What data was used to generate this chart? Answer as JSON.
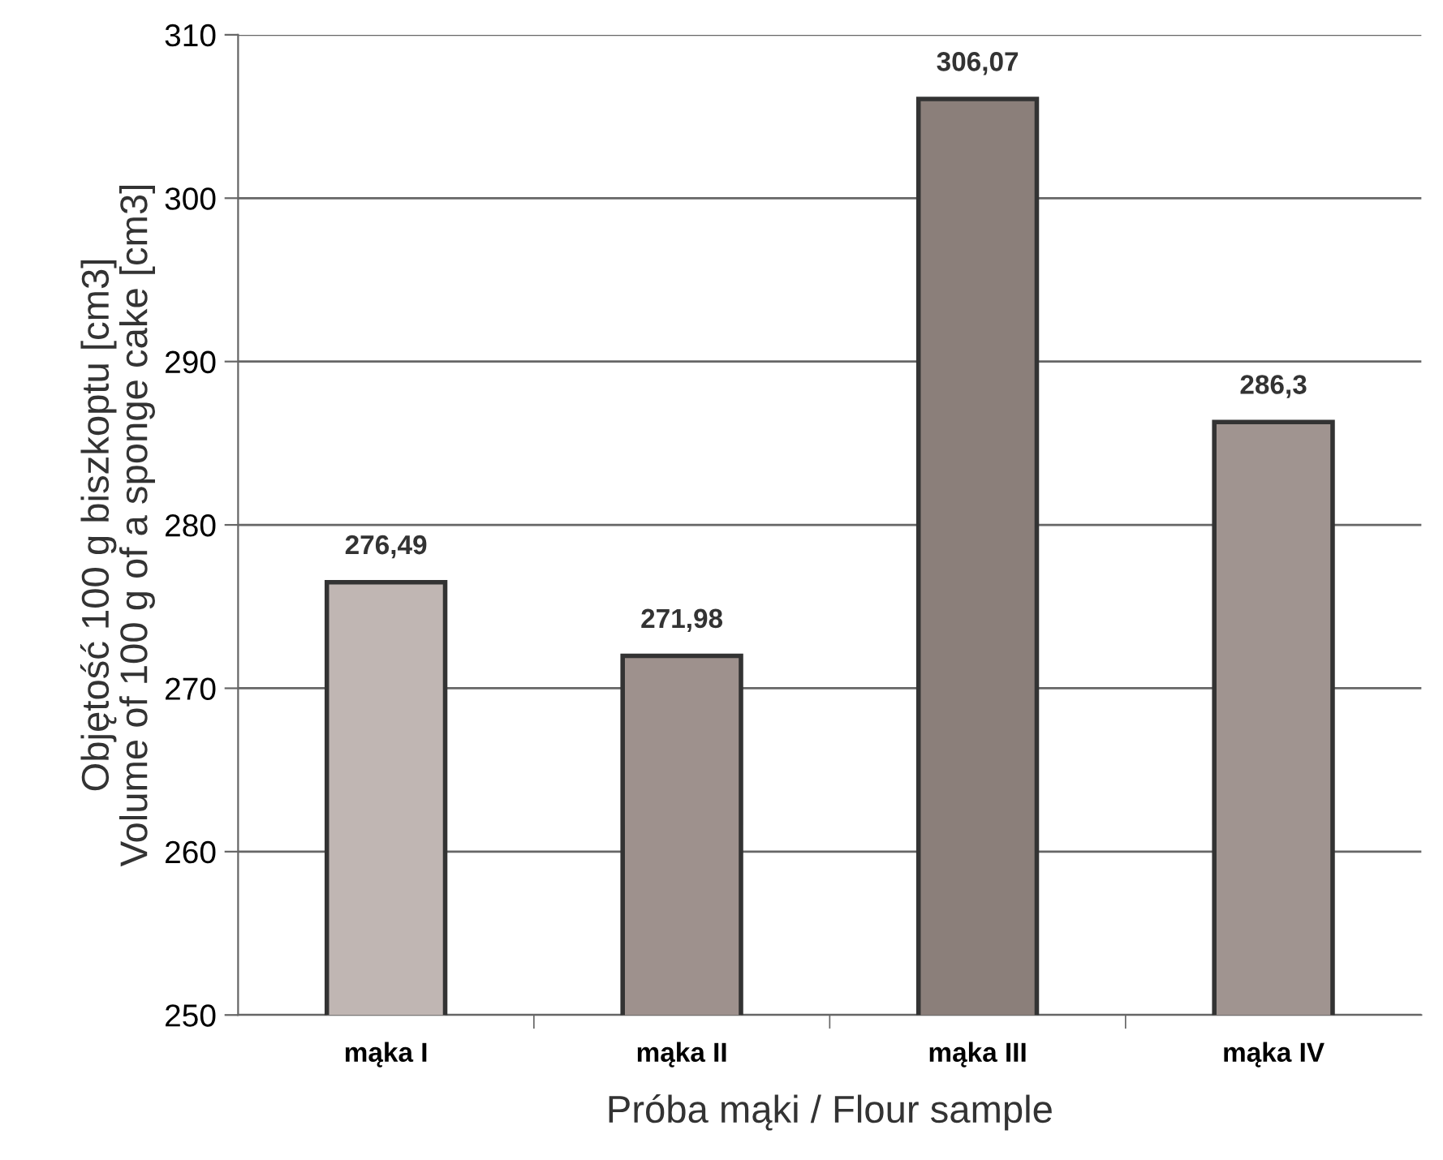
{
  "chart_data": {
    "type": "bar",
    "xlabel": "Próba mąki / Flour sample",
    "ylabel": "Objętość 100 g biszkoptu [cm3]\nVolume of 100 g of a sponge cake [cm3]",
    "categories": [
      "mąka I",
      "mąka II",
      "mąka III",
      "mąka IV"
    ],
    "values": [
      276.49,
      271.98,
      306.07,
      286.3
    ],
    "value_labels": [
      "276,49",
      "271,98",
      "306,07",
      "286,3"
    ],
    "colors": [
      "#c0b6b3",
      "#9e918d",
      "#8b7f7a",
      "#a09490"
    ],
    "ylim": [
      250,
      310
    ],
    "yticks": [
      250,
      260,
      270,
      280,
      290,
      300,
      310
    ],
    "grid": "y"
  }
}
